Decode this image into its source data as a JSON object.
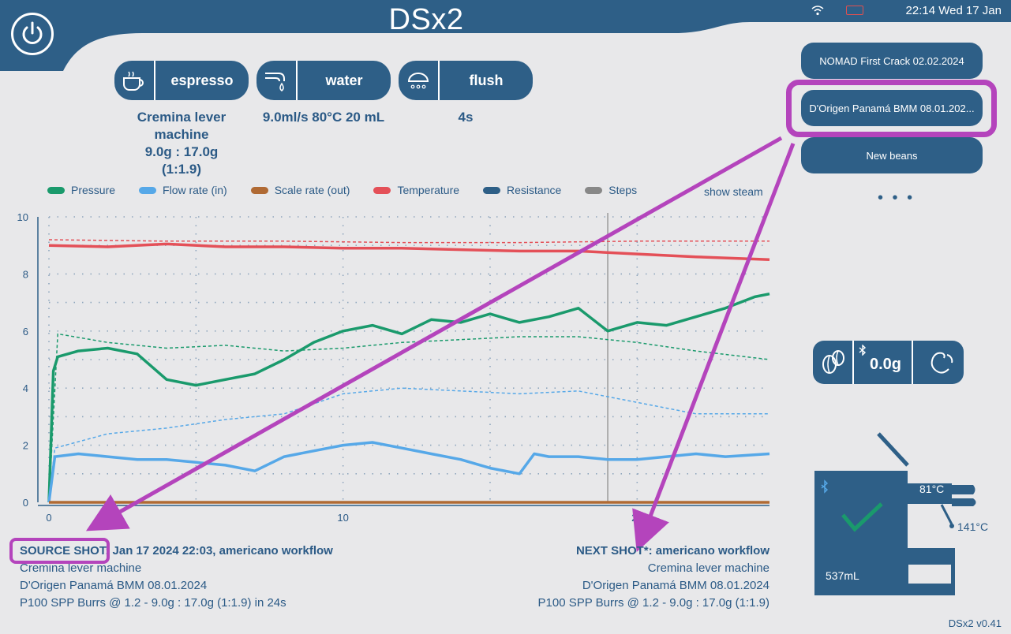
{
  "header": {
    "title": "DSx2",
    "time": "22:14 Wed 17 Jan"
  },
  "actions": [
    {
      "label": "espresso",
      "info": "Cremina lever machine\n9.0g  :  17.0g\n(1:1.9)"
    },
    {
      "label": "water",
      "info": "9.0ml/s  80°C  20 mL"
    },
    {
      "label": "flush",
      "info": "4s"
    }
  ],
  "legend": {
    "items": [
      {
        "label": "Pressure",
        "color": "#1a9a6c"
      },
      {
        "label": "Flow rate (in)",
        "color": "#56a8e8"
      },
      {
        "label": "Scale rate (out)",
        "color": "#b06a34"
      },
      {
        "label": "Temperature",
        "color": "#e45058"
      },
      {
        "label": "Resistance",
        "color": "#2e5f87"
      },
      {
        "label": "Steps",
        "color": "#888888"
      }
    ],
    "show_steam": "show steam"
  },
  "chart_data": {
    "type": "line",
    "xlim": [
      0,
      24.5
    ],
    "ylim": [
      0,
      10
    ],
    "yticks": [
      "0",
      "2",
      "4",
      "6",
      "8",
      "10"
    ],
    "xticks": [
      "0",
      "10",
      "20"
    ],
    "step_marker_x": 19,
    "series": [
      {
        "name": "Temperature",
        "style": "solid",
        "color": "#e45058",
        "x": [
          0,
          2,
          4,
          6,
          8,
          10,
          12,
          14,
          16,
          18,
          20,
          22,
          24.5
        ],
        "y": [
          9.0,
          8.95,
          9.05,
          8.95,
          8.95,
          8.9,
          8.9,
          8.85,
          8.8,
          8.8,
          8.7,
          8.6,
          8.5
        ]
      },
      {
        "name": "Temperature",
        "style": "dashed",
        "color": "#e45058",
        "x": [
          0,
          4,
          8,
          12,
          16,
          20,
          24.5
        ],
        "y": [
          9.2,
          9.15,
          9.15,
          9.1,
          9.1,
          9.15,
          9.15
        ]
      },
      {
        "name": "Pressure",
        "style": "solid",
        "color": "#1a9a6c",
        "x": [
          0,
          0.15,
          0.3,
          1,
          2,
          3,
          4,
          5,
          6,
          7,
          8,
          9,
          10,
          11,
          12,
          13,
          14,
          15,
          16,
          17,
          18,
          19,
          20,
          21,
          22,
          23,
          24,
          24.5
        ],
        "y": [
          0,
          4.6,
          5.1,
          5.3,
          5.4,
          5.2,
          4.3,
          4.1,
          4.3,
          4.5,
          5.0,
          5.6,
          6.0,
          6.2,
          5.9,
          6.4,
          6.3,
          6.6,
          6.3,
          6.5,
          6.8,
          6.0,
          6.3,
          6.2,
          6.5,
          6.8,
          7.2,
          7.3
        ]
      },
      {
        "name": "Pressure",
        "style": "dashed",
        "color": "#1a9a6c",
        "x": [
          0,
          0.3,
          2,
          4,
          6,
          8,
          10,
          12,
          14,
          16,
          18,
          20,
          22,
          24.5
        ],
        "y": [
          0,
          5.9,
          5.6,
          5.4,
          5.5,
          5.3,
          5.4,
          5.6,
          5.7,
          5.8,
          5.8,
          5.6,
          5.3,
          5.0
        ]
      },
      {
        "name": "Flow rate (in)",
        "style": "solid",
        "color": "#56a8e8",
        "x": [
          0,
          0.2,
          1,
          2,
          3,
          4,
          5,
          6,
          7,
          8,
          9,
          10,
          11,
          12,
          13,
          14,
          15,
          16,
          16.5,
          17,
          18,
          19,
          20,
          21,
          22,
          23,
          24.5
        ],
        "y": [
          0,
          1.6,
          1.7,
          1.6,
          1.5,
          1.5,
          1.4,
          1.3,
          1.1,
          1.6,
          1.8,
          2.0,
          2.1,
          1.9,
          1.7,
          1.5,
          1.2,
          1.0,
          1.7,
          1.6,
          1.6,
          1.5,
          1.5,
          1.6,
          1.7,
          1.6,
          1.7
        ]
      },
      {
        "name": "Flow rate (in)",
        "style": "dashed",
        "color": "#56a8e8",
        "x": [
          0,
          0.2,
          2,
          4,
          6,
          8,
          10,
          12,
          14,
          16,
          18,
          20,
          22,
          24.5
        ],
        "y": [
          0,
          1.9,
          2.4,
          2.6,
          2.9,
          3.1,
          3.8,
          4.0,
          3.9,
          3.8,
          3.9,
          3.5,
          3.1,
          3.1
        ]
      },
      {
        "name": "Scale rate (out)",
        "style": "solid",
        "color": "#b06a34",
        "x": [
          0,
          24.5
        ],
        "y": [
          0,
          0
        ]
      }
    ]
  },
  "source_shot": {
    "label": "SOURCE SHOT:",
    "date": "Jan 17 2024 22:03, americano workflow",
    "machine": "Cremina lever machine",
    "beans": "D'Origen Panamá BMM 08.01.2024",
    "grind": "P100 SPP Burrs @ 1.2 - 9.0g : 17.0g (1:1.9) in 24s"
  },
  "next_shot": {
    "head": "NEXT SHOT*: americano workflow",
    "machine": "Cremina lever machine",
    "beans": "D'Origen Panamá BMM 08.01.2024",
    "grind": "P100 SPP Burrs @ 1.2 - 9.0g : 17.0g (1:1.9)"
  },
  "presets": [
    "NOMAD First Crack 02.02.2024",
    "D'Origen Panamá BMM 08.01.202...",
    "New beans"
  ],
  "more": "• • •",
  "scale": {
    "weight": "0.0g"
  },
  "machine": {
    "group_temp": "81°C",
    "steam_temp": "141°C",
    "water_level": "537mL",
    "ready": true
  },
  "version": "DSx2 v0.41",
  "colors": {
    "primary": "#2e5f87",
    "highlight": "#b444bc",
    "background": "#e8e8ea"
  }
}
